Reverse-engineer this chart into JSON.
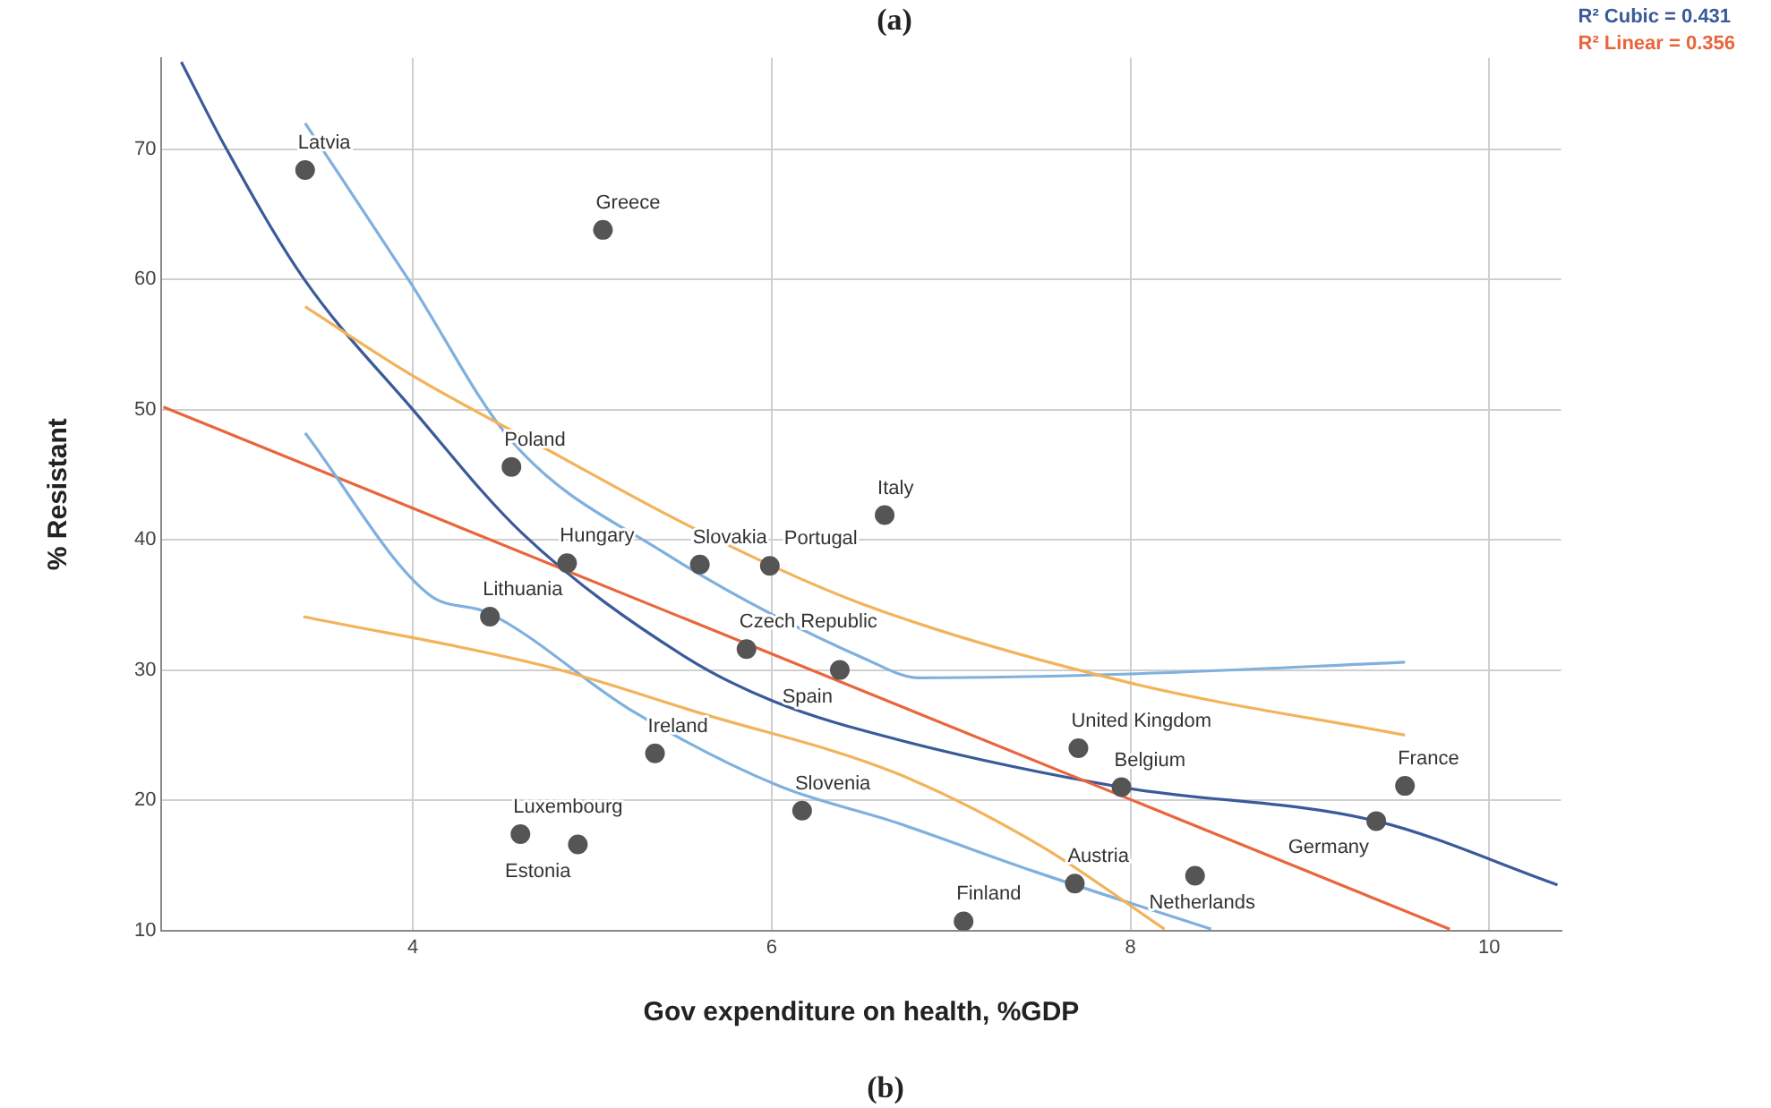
{
  "chart_data": {
    "type": "scatter",
    "title": "(a)",
    "xlabel": "Gov expenditure on health, %GDP",
    "ylabel": "% Resistant",
    "xlim": [
      2.6,
      10.4
    ],
    "xticks": [
      4,
      6,
      8,
      10
    ],
    "ylim": [
      10,
      77
    ],
    "yticks": [
      10,
      20,
      30,
      40,
      50,
      60,
      70
    ],
    "grid": true,
    "legend": "top right",
    "series": [
      {
        "type": "line",
        "marker": "none",
        "color": "#f2b35a",
        "x": [
          3.4,
          4.0,
          4.74,
          5.55,
          6.5,
          8.0,
          9.53
        ],
        "values": [
          57.9,
          52.6,
          47.0,
          41.0,
          35.1,
          29.0,
          25.0
        ]
      },
      {
        "type": "line",
        "marker": "none",
        "color": "#f2b35a",
        "x": [
          3.39,
          4.74,
          5.6,
          6.69,
          7.5,
          8.19
        ],
        "values": [
          34.1,
          30.3,
          26.7,
          22.1,
          16.5,
          10.1
        ]
      },
      {
        "type": "line",
        "marker": "none",
        "color": "#7fb0de",
        "x": [
          3.4,
          3.98,
          4.55,
          5.39,
          6.53,
          6.82,
          8.0,
          9.53
        ],
        "values": [
          72.0,
          59.9,
          47.6,
          39.1,
          30.8,
          29.4,
          29.7,
          30.6
        ]
      },
      {
        "type": "line",
        "marker": "none",
        "color": "#7fb0de",
        "x": [
          3.4,
          4.09,
          4.42,
          5.23,
          6.04,
          6.69,
          7.47,
          8.45
        ],
        "values": [
          48.2,
          35.8,
          34.4,
          26.8,
          21.1,
          18.3,
          14.5,
          10.1
        ]
      },
      {
        "type": "line",
        "marker": "none",
        "name": "R² Linear = 0.356",
        "color": "#e8663c",
        "x": [
          2.61,
          9.78
        ],
        "values": [
          50.2,
          10.1
        ]
      },
      {
        "type": "line",
        "marker": "none",
        "name": "R² Cubic = 0.431",
        "color": "#3a5a9a",
        "x": [
          2.71,
          2.95,
          3.39,
          4.0,
          4.61,
          5.52,
          6.01,
          6.69,
          7.95,
          9.37,
          10.38
        ],
        "values": [
          76.7,
          70.3,
          60.1,
          50.0,
          40.5,
          31.0,
          27.6,
          24.7,
          21.0,
          18.4,
          13.5
        ]
      },
      {
        "marker": "circle",
        "color": "#555555",
        "x": [
          3.4,
          5.06,
          4.55,
          6.63,
          4.86,
          5.6,
          5.99,
          4.43,
          5.86,
          6.38,
          5.35,
          6.17,
          4.6,
          4.92,
          7.71,
          7.95,
          9.53,
          9.37,
          7.69,
          8.36,
          7.07
        ],
        "values": [
          68.4,
          63.8,
          45.6,
          41.9,
          38.2,
          38.1,
          38.0,
          34.1,
          31.6,
          30.0,
          23.6,
          19.2,
          17.4,
          16.6,
          24.0,
          21.0,
          21.1,
          18.4,
          13.6,
          14.2,
          10.7
        ]
      }
    ],
    "annotations": [
      {
        "text": "Latvia",
        "x": 3.4,
        "y": 68.4
      },
      {
        "text": "Greece",
        "x": 5.06,
        "y": 63.8
      },
      {
        "text": "Poland",
        "x": 4.55,
        "y": 45.6
      },
      {
        "text": "Italy",
        "x": 6.63,
        "y": 41.9
      },
      {
        "text": "Hungary",
        "x": 4.86,
        "y": 38.2
      },
      {
        "text": "Slovakia",
        "x": 5.6,
        "y": 38.1
      },
      {
        "text": "Portugal",
        "x": 5.99,
        "y": 38.0
      },
      {
        "text": "Lithuania",
        "x": 4.43,
        "y": 34.1
      },
      {
        "text": "Czech Republic",
        "x": 5.86,
        "y": 31.6
      },
      {
        "text": "Spain",
        "x": 6.38,
        "y": 30.0
      },
      {
        "text": "Ireland",
        "x": 5.35,
        "y": 23.6
      },
      {
        "text": "Slovenia",
        "x": 6.17,
        "y": 19.2
      },
      {
        "text": "Luxembourg",
        "x": 4.6,
        "y": 17.4
      },
      {
        "text": "Estonia",
        "x": 4.92,
        "y": 16.6
      },
      {
        "text": "United Kingdom",
        "x": 7.71,
        "y": 24.0
      },
      {
        "text": "Belgium",
        "x": 7.95,
        "y": 21.0
      },
      {
        "text": "France",
        "x": 9.53,
        "y": 21.1
      },
      {
        "text": "Germany",
        "x": 9.37,
        "y": 18.4
      },
      {
        "text": "Austria",
        "x": 7.69,
        "y": 13.6
      },
      {
        "text": "Netherlands",
        "x": 8.36,
        "y": 14.2
      },
      {
        "text": "Finland",
        "x": 7.07,
        "y": 10.7
      },
      "(b)"
    ]
  }
}
